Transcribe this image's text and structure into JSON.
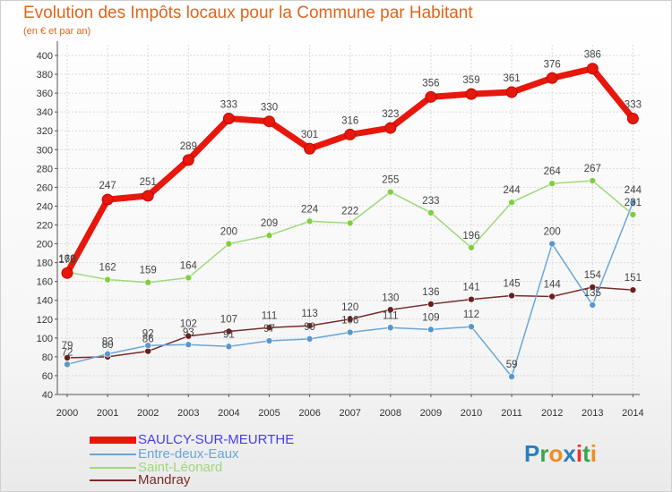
{
  "title": "Evolution des Impôts locaux pour la Commune par Habitant",
  "subtitle": "(en € et par an)",
  "logo": {
    "text": "Proxiti",
    "letters": [
      "P",
      "r",
      "o",
      "x",
      "i",
      "t",
      "i"
    ],
    "colors": [
      "#2a7fc0",
      "#3aa64a",
      "#f28c1e",
      "#2a7fc0",
      "#e8332a",
      "#3aa64a",
      "#f28c1e"
    ]
  },
  "chart_data": {
    "type": "line",
    "title": "Evolution des Impôts locaux pour la Commune par Habitant",
    "ylabel": "(en € et par an)",
    "x": [
      "2000",
      "2001",
      "2002",
      "2003",
      "2004",
      "2005",
      "2006",
      "2007",
      "2008",
      "2009",
      "2010",
      "2011",
      "2012",
      "2013",
      "2014"
    ],
    "y_ticks": [
      "40",
      "60",
      "80",
      "100",
      "120",
      "140",
      "160",
      "180",
      "200",
      "220",
      "240",
      "260",
      "280",
      "300",
      "320",
      "340",
      "360",
      "380",
      "400"
    ],
    "ylim": [
      40,
      400
    ],
    "grid": true,
    "series": [
      {
        "name": "SAULCY-SUR-MEURTHE",
        "color": "#e8170c",
        "marker": "#e8170c",
        "values": [
          169,
          247,
          251,
          289,
          333,
          330,
          301,
          316,
          323,
          356,
          359,
          361,
          376,
          386,
          333
        ],
        "labels": [
          "169",
          "247",
          "251",
          "289",
          "333",
          "330",
          "301",
          "316",
          "323",
          "356",
          "359",
          "361",
          "376",
          "386",
          "333"
        ]
      },
      {
        "name": "Entre-deux-Eaux",
        "color": "#6aa6d6",
        "marker": "#5a97cd",
        "values": [
          72,
          83,
          92,
          93,
          91,
          97,
          99,
          106,
          111,
          109,
          112,
          59,
          200,
          135,
          244
        ],
        "labels": [
          "72",
          "83",
          "92",
          "93",
          "91",
          "97",
          "99",
          "106",
          "111",
          "109",
          "112",
          "59",
          "200",
          "135",
          "244"
        ]
      },
      {
        "name": "Saint-Léonard",
        "color": "#9fd87a",
        "marker": "#7fcf3f",
        "values": [
          170,
          162,
          159,
          164,
          200,
          209,
          224,
          222,
          255,
          233,
          196,
          244,
          264,
          267,
          231
        ],
        "labels": [
          "170",
          "162",
          "159",
          "164",
          "200",
          "209",
          "224",
          "222",
          "255",
          "233",
          "196",
          "244",
          "264",
          "267",
          "231"
        ]
      },
      {
        "name": "Mandray",
        "color": "#7a2b2b",
        "marker": "#6b1e1e",
        "values": [
          79,
          80,
          86,
          102,
          107,
          111,
          113,
          120,
          130,
          136,
          141,
          145,
          144,
          154,
          151
        ],
        "labels": [
          "79",
          "80",
          "86",
          "102",
          "107",
          "111",
          "113",
          "120",
          "130",
          "136",
          "141",
          "145",
          "144",
          "154",
          "151"
        ]
      }
    ]
  }
}
